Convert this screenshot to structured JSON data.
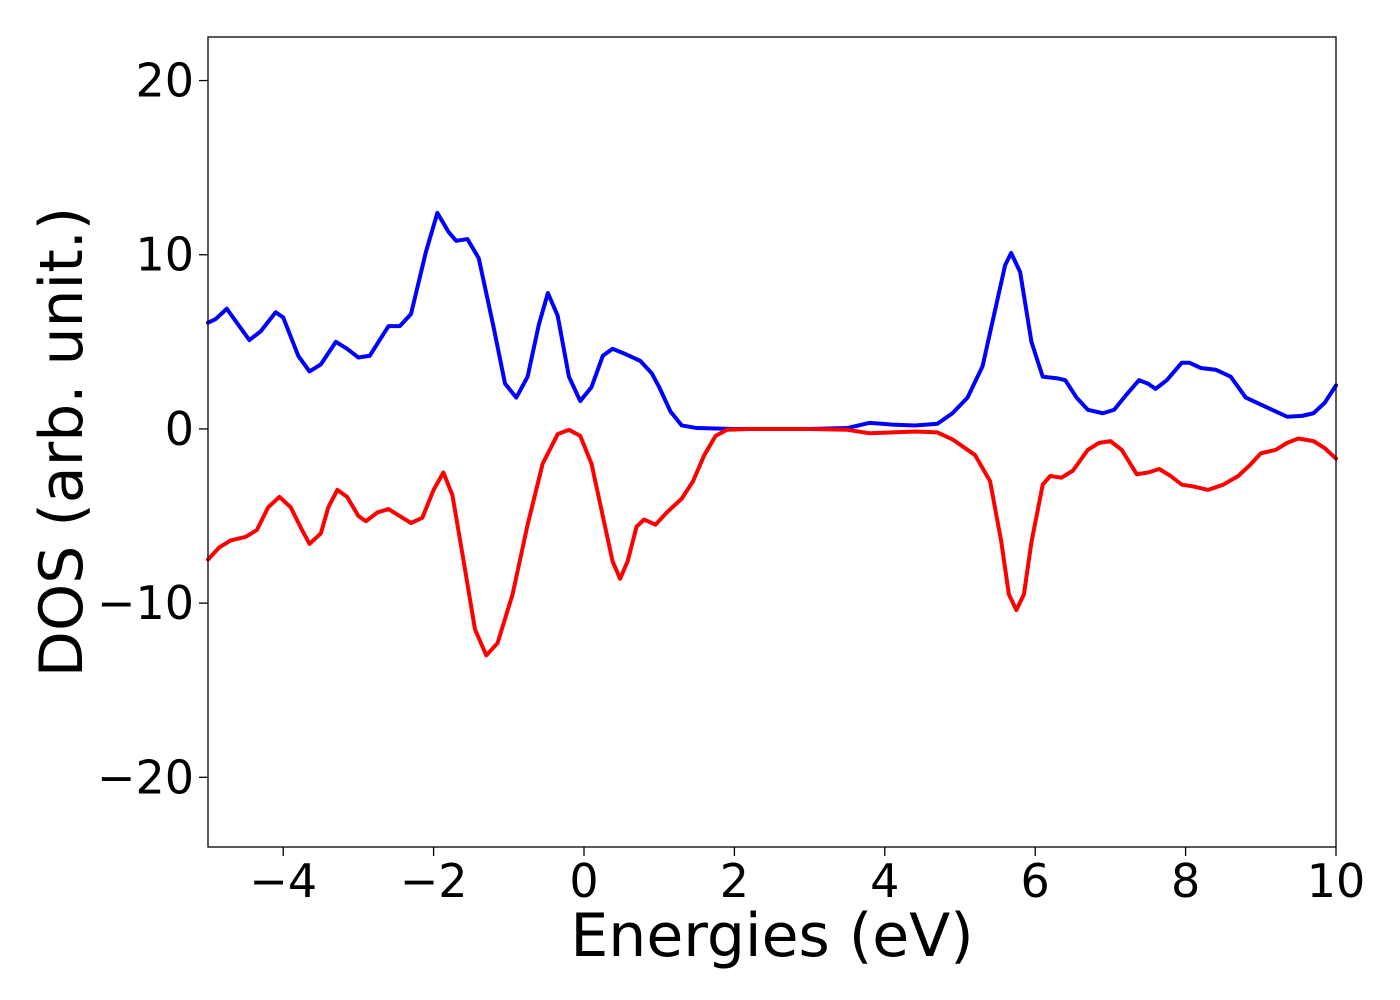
{
  "chart_data": {
    "type": "line",
    "title": "",
    "xlabel": "Energies (eV)",
    "ylabel": "DOS (arb. unit.)",
    "xlim": [
      -5,
      10
    ],
    "ylim": [
      -24,
      22.5
    ],
    "xticks": [
      -4,
      -2,
      0,
      2,
      4,
      6,
      8,
      10
    ],
    "xtick_labels": [
      "−4",
      "−2",
      "0",
      "2",
      "4",
      "6",
      "8",
      "10"
    ],
    "yticks": [
      -20,
      -10,
      0,
      10,
      20
    ],
    "ytick_labels": [
      "−20",
      "−10",
      "0",
      "10",
      "20"
    ],
    "grid": false,
    "legend": false,
    "series": [
      {
        "color": "#0000ff",
        "points": [
          [
            -5.0,
            6.1
          ],
          [
            -4.9,
            6.3
          ],
          [
            -4.75,
            6.9
          ],
          [
            -4.6,
            6.0
          ],
          [
            -4.45,
            5.1
          ],
          [
            -4.3,
            5.6
          ],
          [
            -4.1,
            6.7
          ],
          [
            -4.0,
            6.4
          ],
          [
            -3.8,
            4.2
          ],
          [
            -3.65,
            3.3
          ],
          [
            -3.5,
            3.7
          ],
          [
            -3.3,
            5.0
          ],
          [
            -3.15,
            4.6
          ],
          [
            -3.0,
            4.1
          ],
          [
            -2.85,
            4.2
          ],
          [
            -2.6,
            5.9
          ],
          [
            -2.45,
            5.9
          ],
          [
            -2.3,
            6.6
          ],
          [
            -2.1,
            10.2
          ],
          [
            -1.95,
            12.4
          ],
          [
            -1.8,
            11.3
          ],
          [
            -1.7,
            10.8
          ],
          [
            -1.55,
            10.9
          ],
          [
            -1.4,
            9.8
          ],
          [
            -1.2,
            5.8
          ],
          [
            -1.05,
            2.6
          ],
          [
            -0.9,
            1.8
          ],
          [
            -0.75,
            3.0
          ],
          [
            -0.6,
            6.0
          ],
          [
            -0.48,
            7.8
          ],
          [
            -0.35,
            6.5
          ],
          [
            -0.2,
            3.0
          ],
          [
            -0.05,
            1.6
          ],
          [
            0.1,
            2.4
          ],
          [
            0.25,
            4.2
          ],
          [
            0.38,
            4.6
          ],
          [
            0.55,
            4.3
          ],
          [
            0.75,
            3.9
          ],
          [
            0.9,
            3.2
          ],
          [
            1.0,
            2.4
          ],
          [
            1.15,
            1.0
          ],
          [
            1.3,
            0.2
          ],
          [
            1.5,
            0.05
          ],
          [
            2.0,
            0.0
          ],
          [
            3.0,
            0.0
          ],
          [
            3.5,
            0.05
          ],
          [
            3.8,
            0.35
          ],
          [
            4.1,
            0.25
          ],
          [
            4.4,
            0.2
          ],
          [
            4.7,
            0.3
          ],
          [
            4.9,
            0.9
          ],
          [
            5.1,
            1.8
          ],
          [
            5.3,
            3.6
          ],
          [
            5.45,
            6.5
          ],
          [
            5.6,
            9.4
          ],
          [
            5.68,
            10.1
          ],
          [
            5.8,
            9.0
          ],
          [
            5.95,
            5.0
          ],
          [
            6.1,
            3.0
          ],
          [
            6.3,
            2.9
          ],
          [
            6.4,
            2.8
          ],
          [
            6.55,
            1.8
          ],
          [
            6.7,
            1.1
          ],
          [
            6.9,
            0.9
          ],
          [
            7.05,
            1.1
          ],
          [
            7.2,
            1.9
          ],
          [
            7.38,
            2.8
          ],
          [
            7.5,
            2.6
          ],
          [
            7.6,
            2.3
          ],
          [
            7.75,
            2.8
          ],
          [
            7.95,
            3.8
          ],
          [
            8.05,
            3.8
          ],
          [
            8.2,
            3.5
          ],
          [
            8.4,
            3.4
          ],
          [
            8.6,
            3.0
          ],
          [
            8.8,
            1.8
          ],
          [
            9.0,
            1.4
          ],
          [
            9.15,
            1.1
          ],
          [
            9.35,
            0.7
          ],
          [
            9.55,
            0.75
          ],
          [
            9.7,
            0.9
          ],
          [
            9.85,
            1.5
          ],
          [
            10.0,
            2.5
          ]
        ]
      },
      {
        "color": "#ff0000",
        "points": [
          [
            -5.0,
            -7.5
          ],
          [
            -4.85,
            -6.8
          ],
          [
            -4.7,
            -6.4
          ],
          [
            -4.5,
            -6.2
          ],
          [
            -4.35,
            -5.8
          ],
          [
            -4.2,
            -4.5
          ],
          [
            -4.05,
            -3.9
          ],
          [
            -3.9,
            -4.5
          ],
          [
            -3.75,
            -5.8
          ],
          [
            -3.65,
            -6.6
          ],
          [
            -3.5,
            -6.0
          ],
          [
            -3.4,
            -4.5
          ],
          [
            -3.28,
            -3.5
          ],
          [
            -3.15,
            -3.9
          ],
          [
            -3.0,
            -5.0
          ],
          [
            -2.9,
            -5.3
          ],
          [
            -2.75,
            -4.8
          ],
          [
            -2.6,
            -4.6
          ],
          [
            -2.45,
            -5.0
          ],
          [
            -2.3,
            -5.4
          ],
          [
            -2.15,
            -5.1
          ],
          [
            -2.0,
            -3.5
          ],
          [
            -1.87,
            -2.5
          ],
          [
            -1.75,
            -3.8
          ],
          [
            -1.6,
            -7.6
          ],
          [
            -1.45,
            -11.5
          ],
          [
            -1.3,
            -13.0
          ],
          [
            -1.15,
            -12.3
          ],
          [
            -0.95,
            -9.5
          ],
          [
            -0.75,
            -5.5
          ],
          [
            -0.55,
            -2.0
          ],
          [
            -0.35,
            -0.3
          ],
          [
            -0.2,
            -0.05
          ],
          [
            -0.05,
            -0.4
          ],
          [
            0.1,
            -2.0
          ],
          [
            0.25,
            -5.0
          ],
          [
            0.38,
            -7.6
          ],
          [
            0.48,
            -8.6
          ],
          [
            0.58,
            -7.6
          ],
          [
            0.7,
            -5.6
          ],
          [
            0.8,
            -5.2
          ],
          [
            0.95,
            -5.5
          ],
          [
            1.1,
            -4.8
          ],
          [
            1.3,
            -4.0
          ],
          [
            1.45,
            -3.0
          ],
          [
            1.6,
            -1.5
          ],
          [
            1.75,
            -0.4
          ],
          [
            1.9,
            -0.05
          ],
          [
            2.2,
            0.0
          ],
          [
            3.0,
            0.0
          ],
          [
            3.5,
            -0.05
          ],
          [
            3.8,
            -0.25
          ],
          [
            4.1,
            -0.2
          ],
          [
            4.4,
            -0.15
          ],
          [
            4.7,
            -0.2
          ],
          [
            4.9,
            -0.6
          ],
          [
            5.2,
            -1.5
          ],
          [
            5.4,
            -3.0
          ],
          [
            5.55,
            -6.5
          ],
          [
            5.65,
            -9.5
          ],
          [
            5.75,
            -10.4
          ],
          [
            5.85,
            -9.5
          ],
          [
            5.95,
            -6.5
          ],
          [
            6.1,
            -3.2
          ],
          [
            6.2,
            -2.7
          ],
          [
            6.35,
            -2.8
          ],
          [
            6.5,
            -2.4
          ],
          [
            6.7,
            -1.2
          ],
          [
            6.85,
            -0.8
          ],
          [
            7.0,
            -0.7
          ],
          [
            7.15,
            -1.2
          ],
          [
            7.35,
            -2.6
          ],
          [
            7.5,
            -2.5
          ],
          [
            7.65,
            -2.3
          ],
          [
            7.8,
            -2.7
          ],
          [
            7.95,
            -3.2
          ],
          [
            8.1,
            -3.3
          ],
          [
            8.3,
            -3.5
          ],
          [
            8.5,
            -3.2
          ],
          [
            8.7,
            -2.7
          ],
          [
            8.85,
            -2.1
          ],
          [
            9.0,
            -1.4
          ],
          [
            9.2,
            -1.2
          ],
          [
            9.35,
            -0.8
          ],
          [
            9.5,
            -0.55
          ],
          [
            9.7,
            -0.7
          ],
          [
            9.85,
            -1.1
          ],
          [
            10.0,
            -1.7
          ]
        ]
      }
    ]
  }
}
